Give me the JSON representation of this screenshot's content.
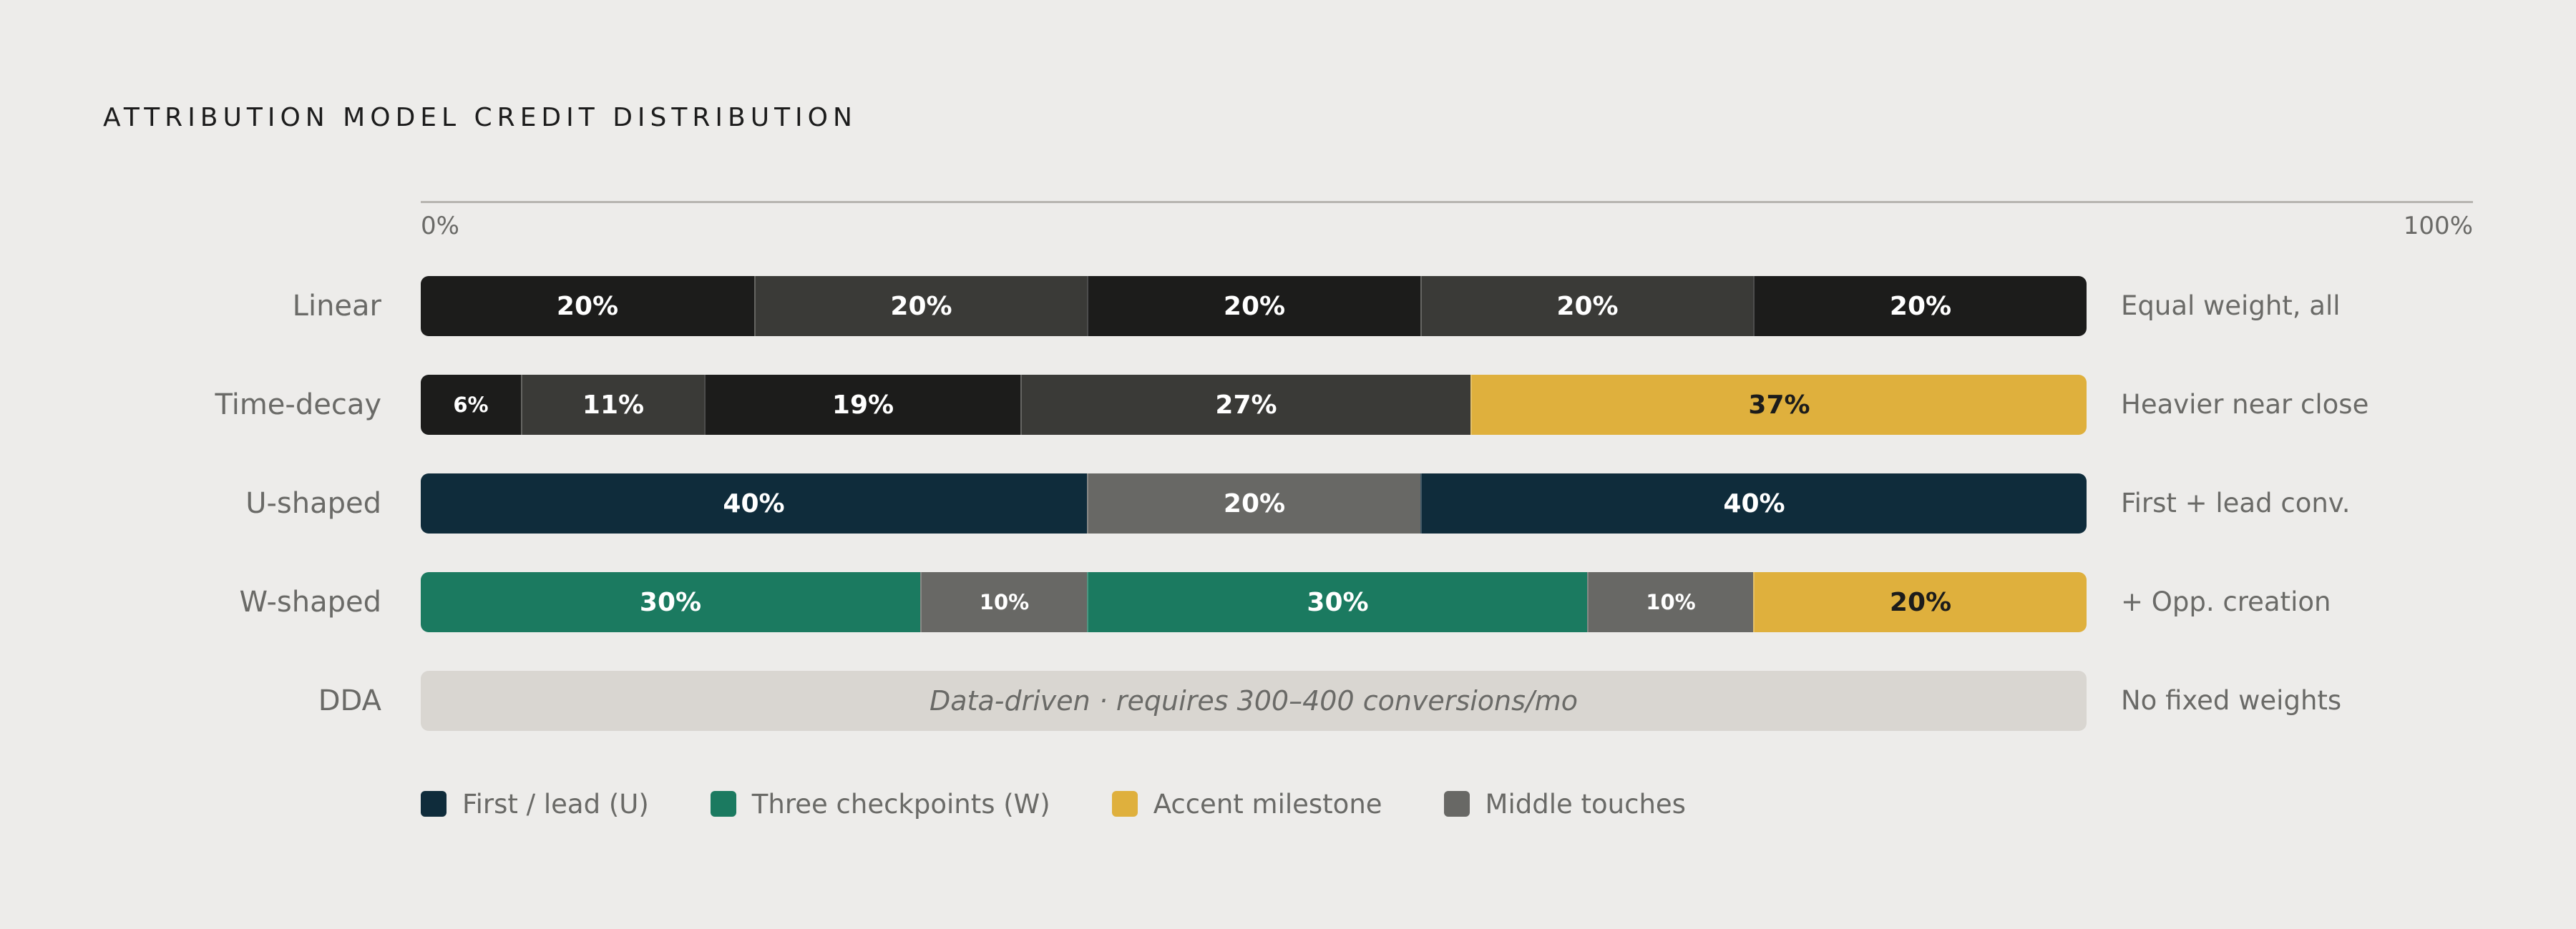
{
  "chart_data": {
    "type": "bar",
    "orientation": "horizontal",
    "stacked": true,
    "title": "ATTRIBUTION MODEL CREDIT DISTRIBUTION",
    "axis": {
      "min_label": "0%",
      "max_label": "100%",
      "xlim": [
        0,
        100
      ]
    },
    "rows": [
      {
        "name": "Linear",
        "note": "Equal weight, all",
        "segments": [
          {
            "value": 20,
            "label": "20%",
            "color": "#1c1c1b"
          },
          {
            "value": 20,
            "label": "20%",
            "color": "#3a3a37"
          },
          {
            "value": 20,
            "label": "20%",
            "color": "#1c1c1b"
          },
          {
            "value": 20,
            "label": "20%",
            "color": "#3a3a37"
          },
          {
            "value": 20,
            "label": "20%",
            "color": "#1c1c1b"
          }
        ]
      },
      {
        "name": "Time-decay",
        "note": "Heavier near close",
        "segments": [
          {
            "value": 6,
            "label": "6%",
            "color": "#1c1c1b"
          },
          {
            "value": 11,
            "label": "11%",
            "color": "#3a3a37"
          },
          {
            "value": 19,
            "label": "19%",
            "color": "#1c1c1b"
          },
          {
            "value": 27,
            "label": "27%",
            "color": "#3a3a37"
          },
          {
            "value": 37,
            "label": "37%",
            "color": "#dfb03d"
          }
        ]
      },
      {
        "name": "U-shaped",
        "note": "First + lead conv.",
        "segments": [
          {
            "value": 40,
            "label": "40%",
            "color": "#0f2c3b"
          },
          {
            "value": 20,
            "label": "20%",
            "color": "#686865"
          },
          {
            "value": 40,
            "label": "40%",
            "color": "#0f2c3b"
          }
        ]
      },
      {
        "name": "W-shaped",
        "note": "+ Opp. creation",
        "segments": [
          {
            "value": 30,
            "label": "30%",
            "color": "#1b7a60"
          },
          {
            "value": 10,
            "label": "10%",
            "color": "#686865"
          },
          {
            "value": 30,
            "label": "30%",
            "color": "#1b7a60"
          },
          {
            "value": 10,
            "label": "10%",
            "color": "#686865"
          },
          {
            "value": 20,
            "label": "20%",
            "color": "#dfb03d"
          }
        ]
      },
      {
        "name": "DDA",
        "note": "No fixed weights",
        "placeholder": "Data-driven · requires 300–400 conversions/mo",
        "segments": []
      }
    ],
    "legend": [
      {
        "label": "First / lead (U)",
        "color": "#0f2c3b"
      },
      {
        "label": "Three checkpoints (W)",
        "color": "#1b7a60"
      },
      {
        "label": "Accent milestone",
        "color": "#dfb03d"
      },
      {
        "label": "Middle touches",
        "color": "#686865"
      }
    ],
    "grid": false,
    "legend_placement": "bottom-left"
  }
}
